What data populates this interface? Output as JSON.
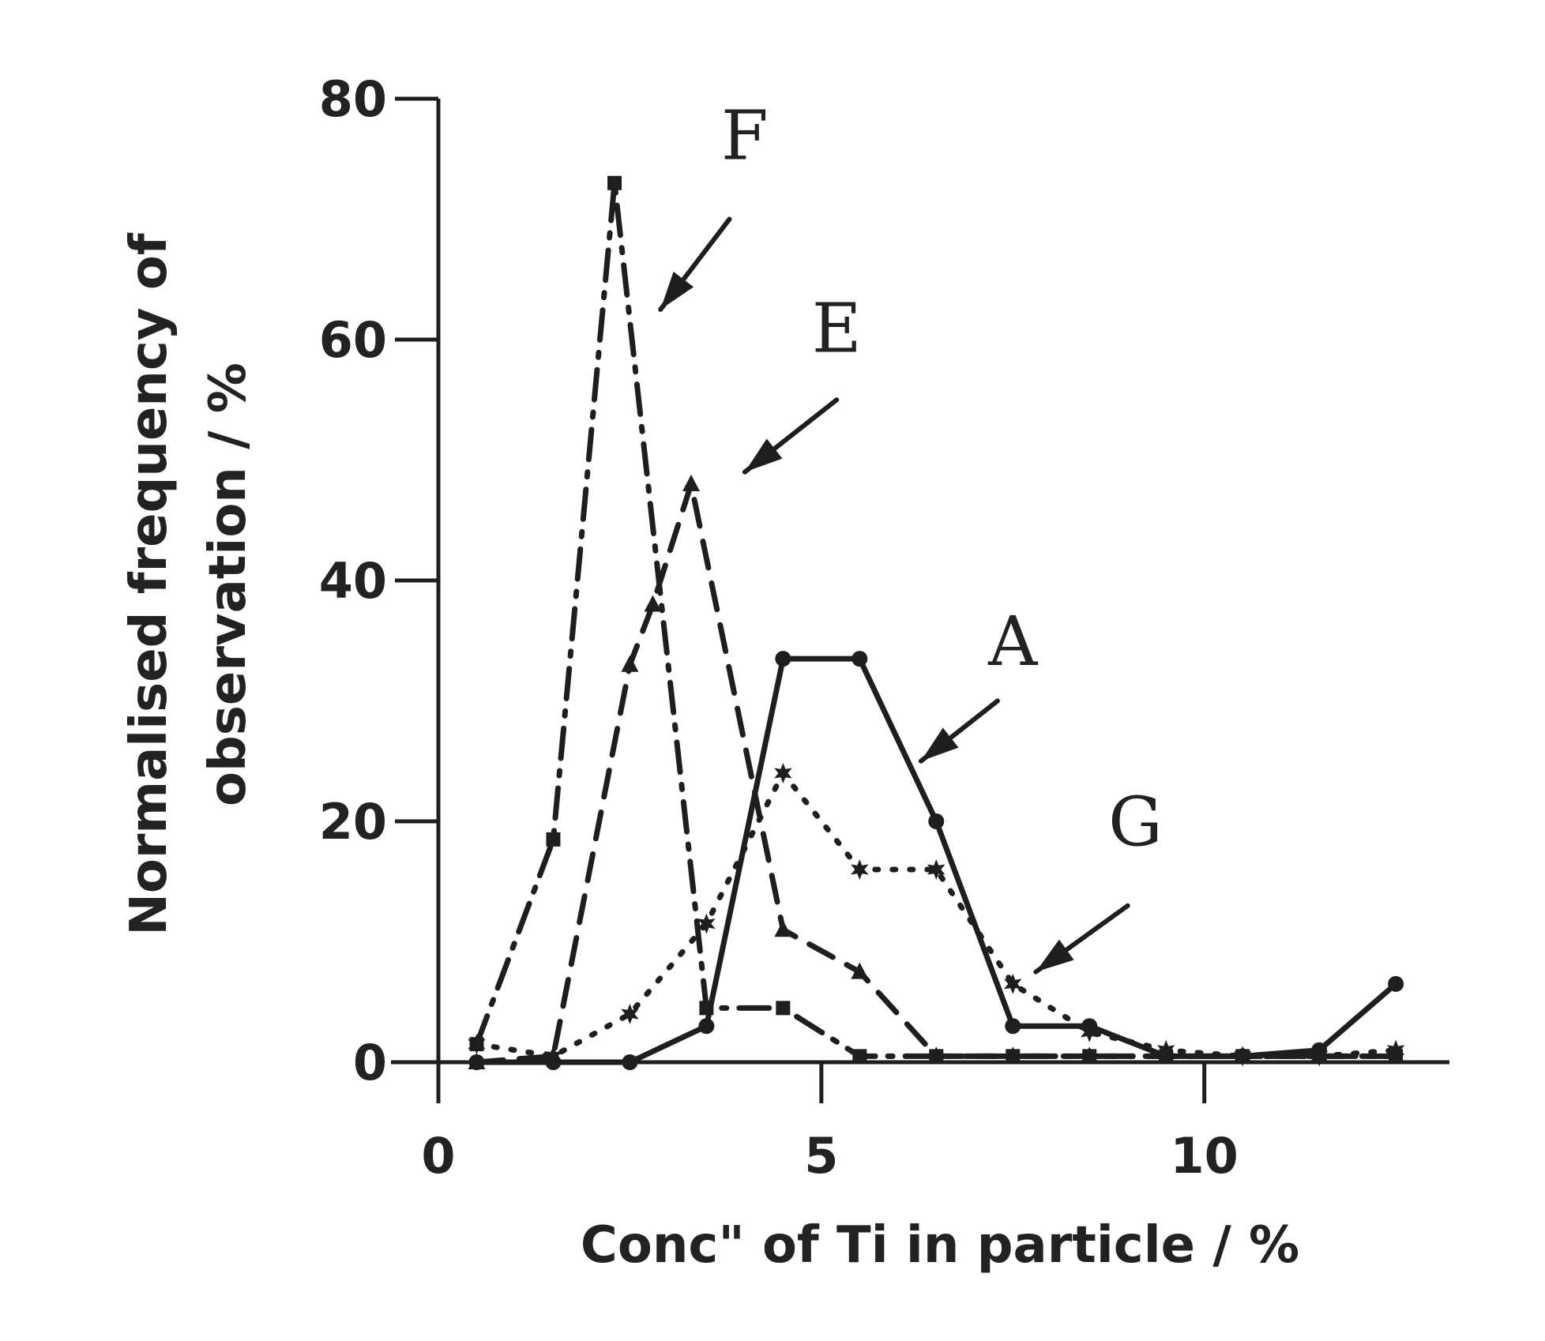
{
  "chart_data": {
    "type": "line",
    "title": "",
    "xlabel": "Conc\" of Ti in particle / %",
    "ylabel_line1": "Normalised frequency of",
    "ylabel_line2": "observation / %",
    "xlim": [
      0,
      13.2
    ],
    "ylim": [
      0,
      80
    ],
    "xticks": [
      0,
      5,
      10
    ],
    "yticks": [
      0,
      20,
      40,
      60,
      80
    ],
    "xtick_labels": [
      "0",
      "5",
      "10"
    ],
    "ytick_labels": [
      "0",
      "20",
      "40",
      "60",
      "80"
    ],
    "grid": false,
    "series": [
      {
        "name": "A",
        "style": "solid",
        "marker": "circle",
        "x": [
          0.5,
          1.5,
          2.5,
          3.5,
          4.5,
          5.5,
          6.5,
          7.5,
          8.5,
          9.5,
          10.5,
          11.5,
          12.5
        ],
        "y": [
          0,
          0,
          0,
          3,
          33.5,
          33.5,
          20,
          3,
          3,
          0.5,
          0.5,
          1,
          6.5
        ]
      },
      {
        "name": "E",
        "style": "dashed",
        "marker": "triangle",
        "x": [
          0.5,
          1.5,
          2.5,
          2.8,
          3.3,
          4.5,
          5.5,
          6.5,
          7.5,
          8.5,
          9.5,
          10.5,
          11.5,
          12.5
        ],
        "y": [
          0,
          0.5,
          33,
          38,
          48,
          11,
          7.5,
          0.5,
          0.5,
          0.5,
          0.5,
          0.5,
          0.5,
          0.5
        ]
      },
      {
        "name": "F",
        "style": "dashdot",
        "marker": "square",
        "x": [
          0.5,
          1.5,
          2.3,
          3.5,
          4.5,
          5.5,
          6.5,
          7.5,
          8.5,
          9.5,
          10.5,
          11.5,
          12.5
        ],
        "y": [
          1.5,
          18.5,
          73,
          4.5,
          4.5,
          0.5,
          0.5,
          0.5,
          0.5,
          0.5,
          0.5,
          0.5,
          0.5
        ]
      },
      {
        "name": "G",
        "style": "dotted",
        "marker": "star",
        "x": [
          0.5,
          1.5,
          2.5,
          3.5,
          4.5,
          5.5,
          6.5,
          7.5,
          8.5,
          9.5,
          10.5,
          11.5,
          12.5
        ],
        "y": [
          1.5,
          0.5,
          4,
          11.5,
          24,
          16,
          16,
          6.5,
          2.5,
          1,
          0.5,
          0.5,
          1
        ]
      }
    ],
    "annotations": [
      {
        "label": "F",
        "x": 4.0,
        "y": 75,
        "arrow_from": [
          3.8,
          70
        ],
        "arrow_to": [
          2.9,
          62.5
        ]
      },
      {
        "label": "E",
        "x": 5.2,
        "y": 59,
        "arrow_from": [
          5.2,
          55
        ],
        "arrow_to": [
          4.0,
          49
        ]
      },
      {
        "label": "A",
        "x": 7.5,
        "y": 33,
        "arrow_from": [
          7.3,
          30
        ],
        "arrow_to": [
          6.3,
          25
        ]
      },
      {
        "label": "G",
        "x": 9.1,
        "y": 18,
        "arrow_from": [
          9.0,
          13
        ],
        "arrow_to": [
          7.8,
          7.5
        ]
      }
    ]
  }
}
